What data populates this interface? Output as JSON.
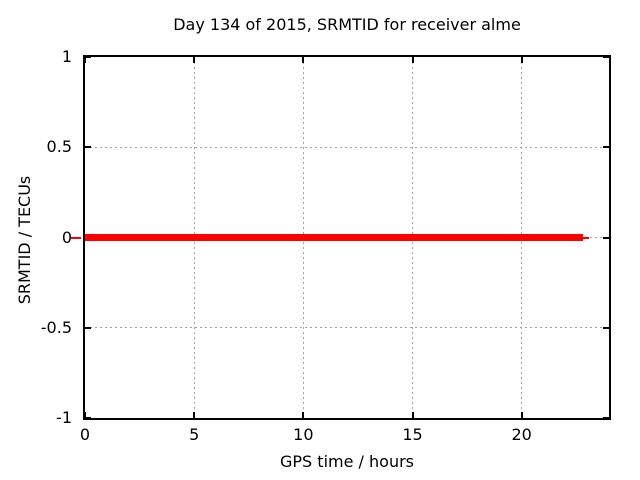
{
  "chart_data": {
    "type": "line",
    "title": "Day 134 of 2015, SRMTID for receiver alme",
    "xlabel": "GPS time / hours",
    "ylabel": "SRMTID / TECUs",
    "xlim": [
      0,
      24
    ],
    "ylim": [
      -1,
      1
    ],
    "xticks": [
      0,
      5,
      10,
      15,
      20
    ],
    "yticks": [
      -1,
      -0.5,
      0,
      0.5,
      1
    ],
    "grid": true,
    "legend_position": "none",
    "colors": {
      "line": "#ff0000",
      "grid": "#a0a0a0",
      "axis": "#000000",
      "background": "#ffffff",
      "text": "#000000"
    },
    "series": [
      {
        "name": "SRMTID",
        "color": "#ff0000",
        "segments": [
          {
            "x0": 0,
            "x1": 22.8,
            "y": 0,
            "thickness_px": 7
          },
          {
            "x0": 22.8,
            "x1": 23.1,
            "y": 0,
            "thickness_px": 2
          }
        ]
      }
    ],
    "y_zero_outer_dash": {
      "color": "#ff0000",
      "y": 0
    }
  }
}
